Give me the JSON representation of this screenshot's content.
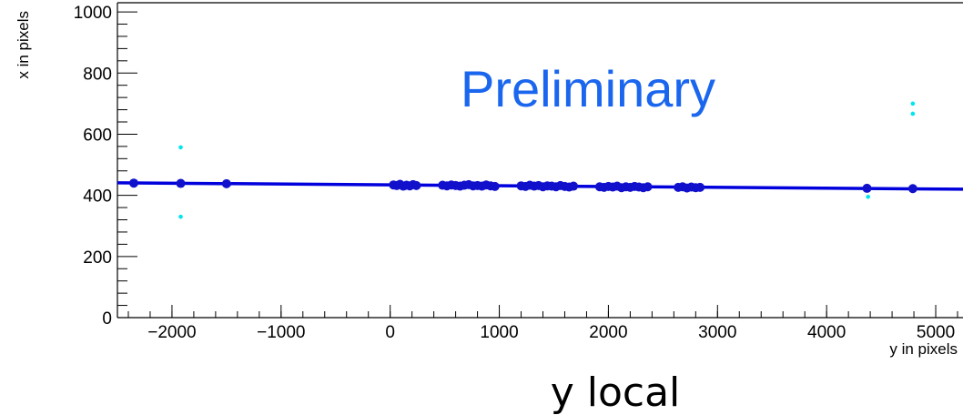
{
  "chart_data": {
    "type": "scatter",
    "xlabel": "y in pixels",
    "ylabel": "x in pixels",
    "watermark": "Preliminary",
    "caption": "y local",
    "xlim": [
      -2500,
      5250
    ],
    "ylim": [
      0,
      1030
    ],
    "xticks": [
      -2000,
      -1000,
      0,
      1000,
      2000,
      3000,
      4000,
      5000
    ],
    "xtick_labels": [
      "−2000",
      "−1000",
      "0",
      "1000",
      "2000",
      "3000",
      "4000",
      "5000"
    ],
    "yticks": [
      0,
      200,
      400,
      600,
      800,
      1000
    ],
    "ytick_labels": [
      "0",
      "200",
      "400",
      "600",
      "800",
      "1000"
    ],
    "grid": false,
    "colors": {
      "fit": "#0000dd",
      "inliers": "#1111cc",
      "outliers": "#00e5ee",
      "watermark": "#1a66ee"
    },
    "series": [
      {
        "name": "",
        "kind": "fit-line",
        "x": [
          -2500,
          5250
        ],
        "y": [
          441,
          420
        ]
      },
      {
        "name": "",
        "kind": "inliers",
        "x": [
          -2350,
          -1920,
          -1500,
          4370,
          4790,
          30,
          60,
          90,
          120,
          150,
          180,
          210,
          240,
          480,
          520,
          560,
          600,
          640,
          680,
          720,
          760,
          800,
          840,
          880,
          920,
          960,
          1200,
          1240,
          1280,
          1320,
          1360,
          1400,
          1440,
          1480,
          1520,
          1560,
          1600,
          1640,
          1680,
          1920,
          1960,
          2000,
          2040,
          2080,
          2120,
          2160,
          2200,
          2240,
          2280,
          2320,
          2360,
          2640,
          2680,
          2720,
          2760,
          2800,
          2840
        ],
        "y": [
          440,
          439,
          438,
          423,
          422,
          434,
          432,
          436,
          430,
          433,
          431,
          435,
          432,
          433,
          431,
          434,
          432,
          430,
          433,
          435,
          431,
          432,
          430,
          434,
          431,
          429,
          431,
          429,
          433,
          430,
          432,
          428,
          431,
          430,
          428,
          432,
          429,
          427,
          430,
          428,
          426,
          429,
          427,
          430,
          425,
          428,
          426,
          429,
          427,
          425,
          428,
          426,
          428,
          424,
          427,
          425,
          426
        ]
      },
      {
        "name": "",
        "kind": "outliers",
        "x": [
          -1920,
          -1920,
          4380,
          4790,
          4790
        ],
        "y": [
          557,
          330,
          395,
          700,
          667
        ]
      }
    ]
  }
}
